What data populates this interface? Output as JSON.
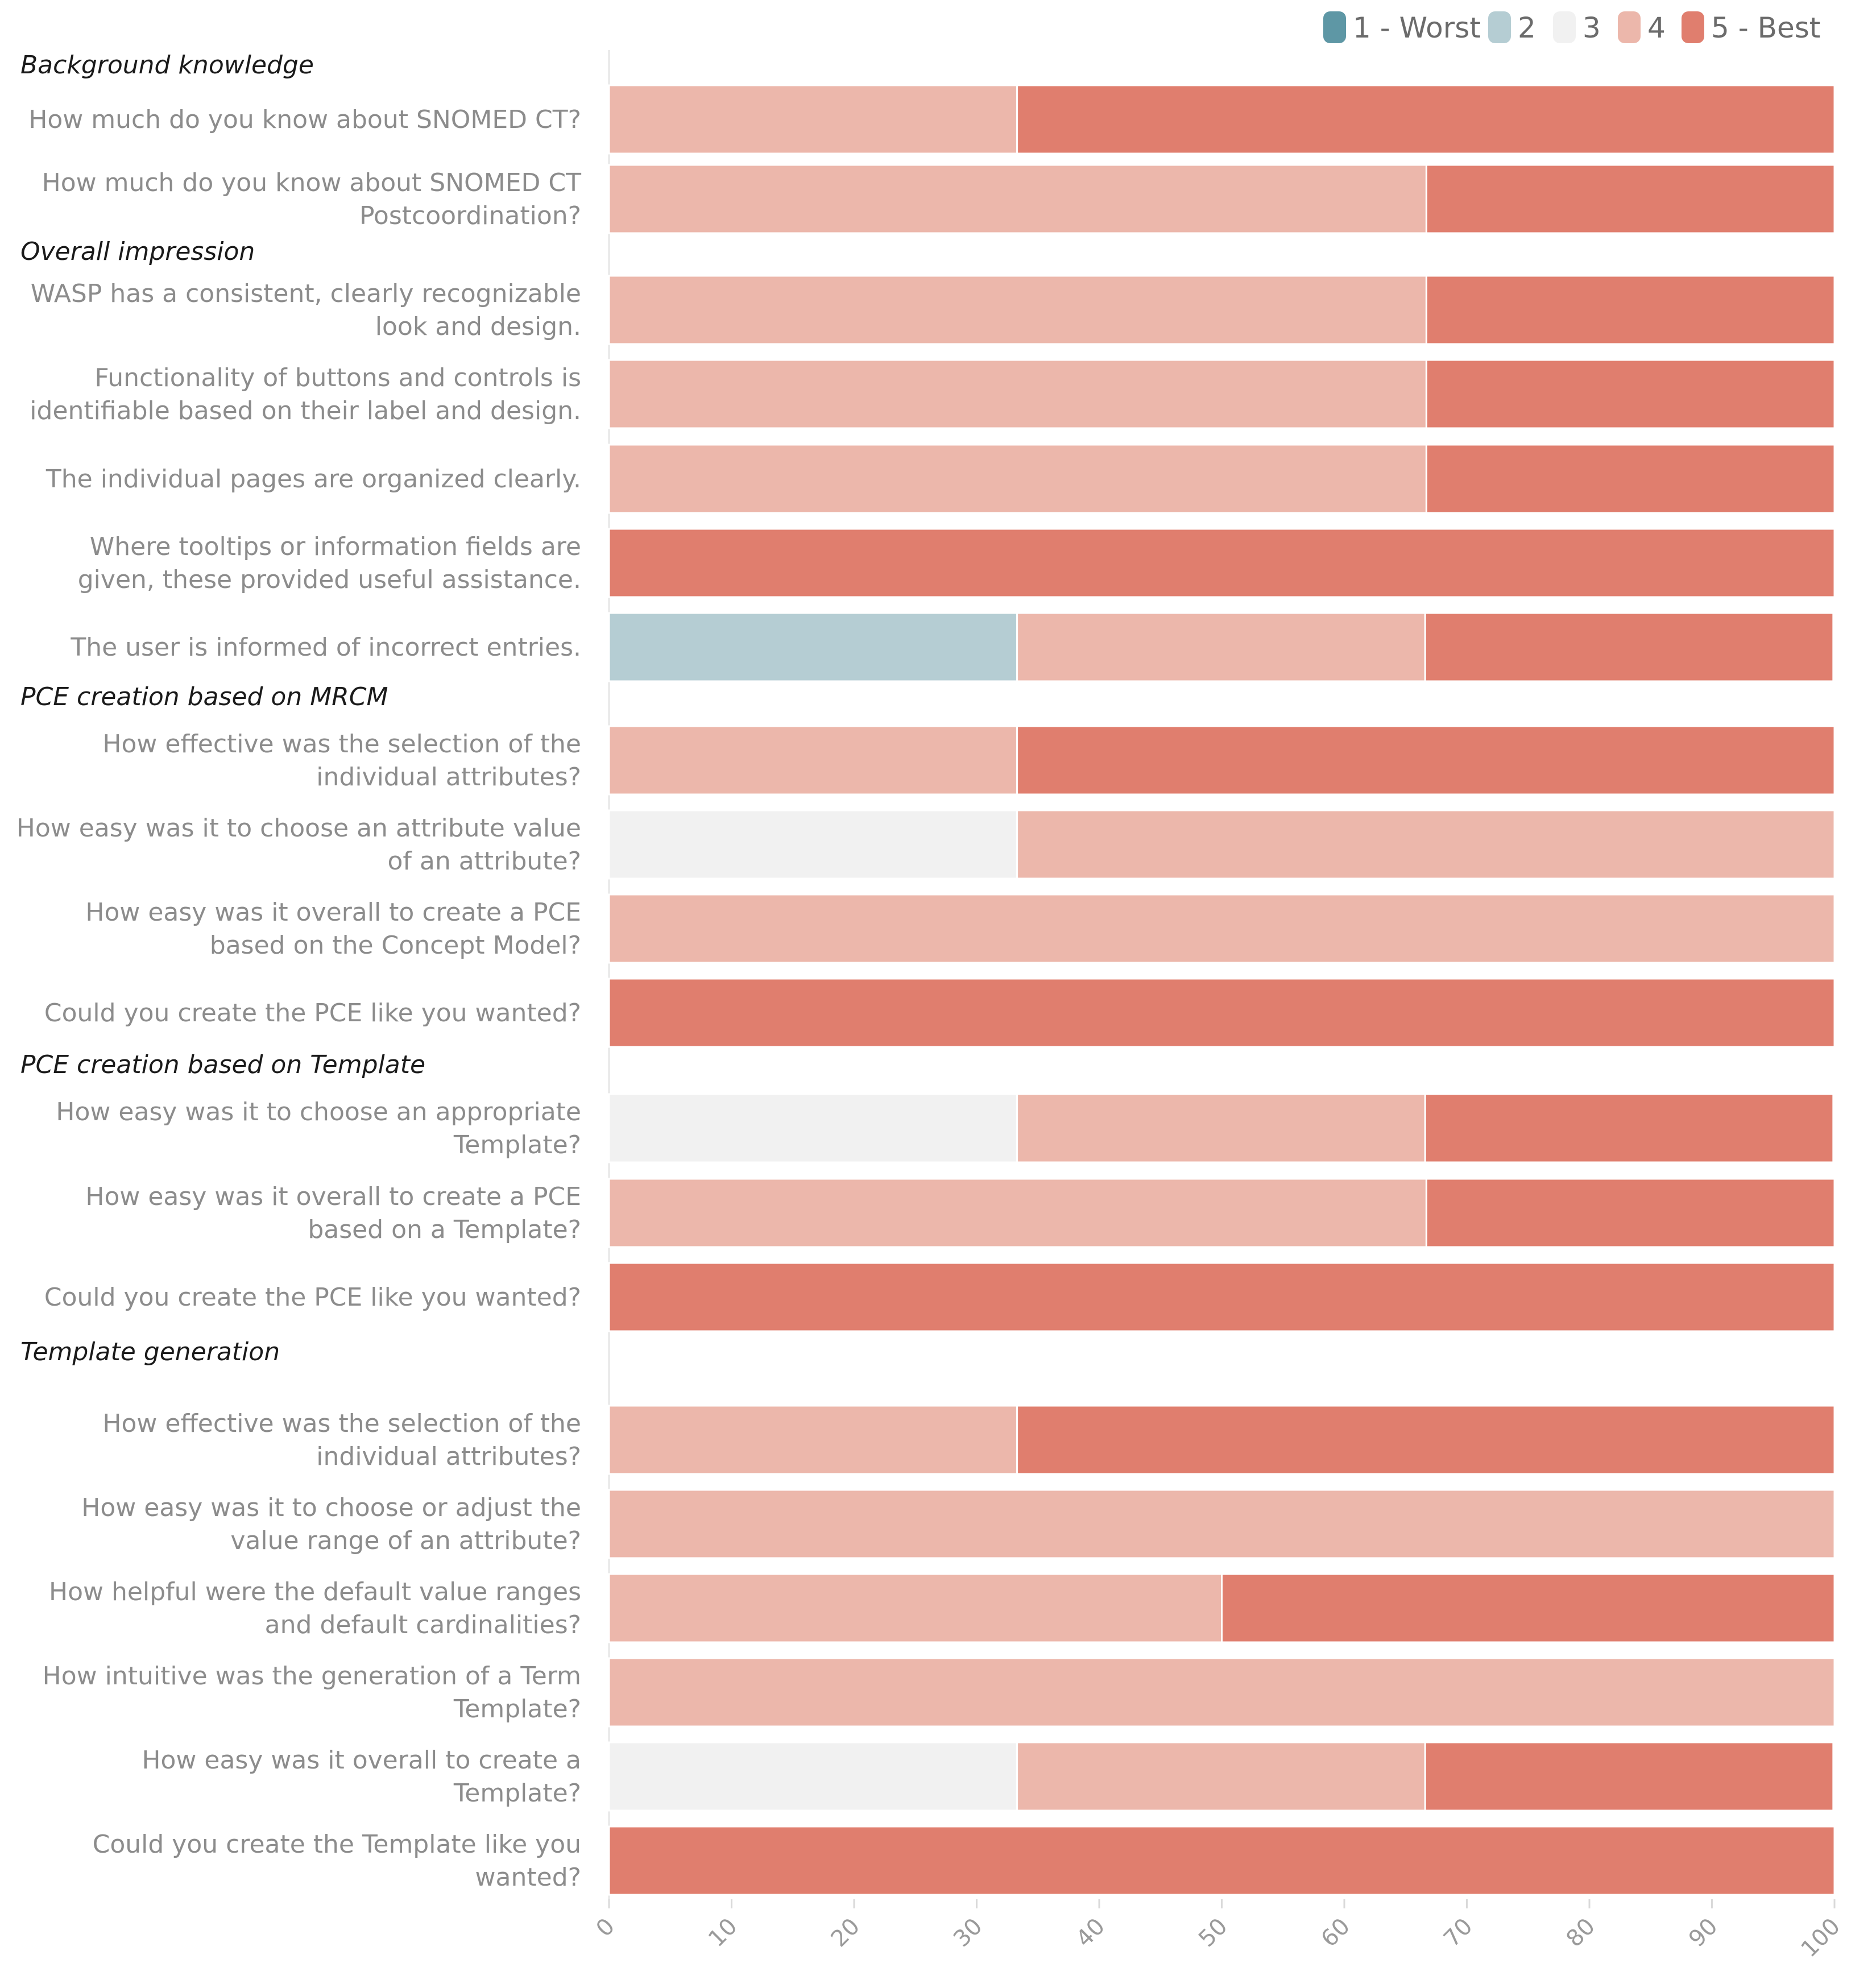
{
  "chart_data": {
    "type": "bar",
    "orientation": "horizontal",
    "stacked": true,
    "xlim": [
      0,
      100
    ],
    "xticks": [
      "0",
      "10",
      "20",
      "30",
      "40",
      "50",
      "60",
      "70",
      "80",
      "90",
      "100"
    ],
    "grid": false,
    "legend_position": "top-right",
    "series": [
      {
        "name": "1 - Worst",
        "color": "#5e97a5"
      },
      {
        "name": "2",
        "color": "#b5cdd3"
      },
      {
        "name": "3",
        "color": "#f1f1f1"
      },
      {
        "name": "4",
        "color": "#ecb7ab"
      },
      {
        "name": "5 - Best",
        "color": "#e07e6e"
      }
    ],
    "groups": [
      {
        "label": "Background knowledge",
        "questions": [
          {
            "label": [
              "How much do you know about SNOMED CT?"
            ],
            "values": [
              0,
              0,
              0,
              33.3,
              66.7
            ]
          },
          {
            "label": [
              "How much do you know about SNOMED CT",
              "Postcoordination?"
            ],
            "values": [
              0,
              0,
              0,
              66.7,
              33.3
            ]
          }
        ]
      },
      {
        "label": "Overall impression",
        "questions": [
          {
            "label": [
              "WASP has a consistent, clearly recognizable",
              "look and design."
            ],
            "values": [
              0,
              0,
              0,
              66.7,
              33.3
            ]
          },
          {
            "label": [
              "Functionality of buttons and controls is",
              "identifiable based on their label and design."
            ],
            "values": [
              0,
              0,
              0,
              66.7,
              33.3
            ]
          },
          {
            "label": [
              "The individual pages are organized clearly."
            ],
            "values": [
              0,
              0,
              0,
              66.7,
              33.3
            ]
          },
          {
            "label": [
              "Where tooltips or information fields are",
              "given, these provided useful assistance."
            ],
            "values": [
              0,
              0,
              0,
              0,
              100
            ]
          },
          {
            "label": [
              "The user is informed of incorrect entries."
            ],
            "values": [
              0,
              33.3,
              0,
              33.3,
              33.3
            ]
          }
        ]
      },
      {
        "label": "PCE creation based on MRCM",
        "questions": [
          {
            "label": [
              "How effective was the selection of the",
              "individual attributes?"
            ],
            "values": [
              0,
              0,
              0,
              33.3,
              66.7
            ]
          },
          {
            "label": [
              "How easy was it to choose an attribute value",
              "of an attribute?"
            ],
            "values": [
              0,
              0,
              33.3,
              66.7,
              0
            ]
          },
          {
            "label": [
              "How easy was it overall to create a PCE",
              "based on the Concept Model?"
            ],
            "values": [
              0,
              0,
              0,
              100,
              0
            ]
          },
          {
            "label": [
              "Could you create the PCE like you wanted?"
            ],
            "values": [
              0,
              0,
              0,
              0,
              100
            ]
          }
        ]
      },
      {
        "label": "PCE creation based on Template",
        "questions": [
          {
            "label": [
              "How easy was it to choose an appropriate",
              "Template?"
            ],
            "values": [
              0,
              0,
              33.3,
              33.3,
              33.3
            ]
          },
          {
            "label": [
              "How easy was it overall to create a PCE",
              "based on a Template?"
            ],
            "values": [
              0,
              0,
              0,
              66.7,
              33.3
            ]
          },
          {
            "label": [
              "Could you create the PCE like you wanted?"
            ],
            "values": [
              0,
              0,
              0,
              0,
              100
            ]
          }
        ]
      },
      {
        "label": "Template generation",
        "questions": [
          {
            "label": [
              "How effective was the selection of the",
              "individual attributes?"
            ],
            "values": [
              0,
              0,
              0,
              33.3,
              66.7
            ]
          },
          {
            "label": [
              "How easy was it to choose or adjust the",
              "value range of an attribute?"
            ],
            "values": [
              0,
              0,
              0,
              100,
              0
            ]
          },
          {
            "label": [
              "How helpful were the default value ranges",
              "and default cardinalities?"
            ],
            "values": [
              0,
              0,
              0,
              50,
              50
            ]
          },
          {
            "label": [
              "How intuitive was the generation of a Term",
              "Template?"
            ],
            "values": [
              0,
              0,
              0,
              100,
              0
            ]
          },
          {
            "label": [
              "How easy was it overall to create a",
              "Template?"
            ],
            "values": [
              0,
              0,
              33.3,
              33.3,
              33.3
            ]
          },
          {
            "label": [
              "Could you create the Template like you",
              "wanted?"
            ],
            "values": [
              0,
              0,
              0,
              0,
              100
            ]
          }
        ]
      }
    ]
  }
}
